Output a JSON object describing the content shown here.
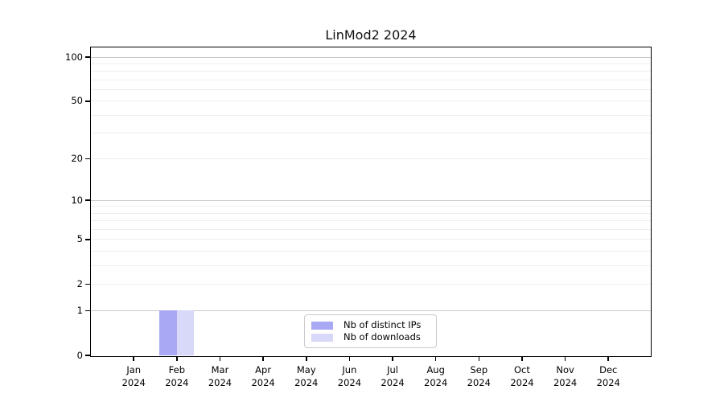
{
  "chart_data": {
    "type": "bar",
    "title": "LinMod2 2024",
    "xlabel": "",
    "ylabel": "",
    "yscale": "log1p",
    "ylim": [
      0,
      116
    ],
    "yticks": [
      0,
      1,
      2,
      5,
      10,
      20,
      50,
      100
    ],
    "gridlines": {
      "major": [
        1,
        10,
        100
      ],
      "minor": [
        2,
        3,
        4,
        5,
        6,
        7,
        8,
        9,
        20,
        30,
        40,
        50,
        60,
        70,
        80,
        90
      ]
    },
    "categories": [
      {
        "label": "Jan",
        "sub": "2024"
      },
      {
        "label": "Feb",
        "sub": "2024"
      },
      {
        "label": "Mar",
        "sub": "2024"
      },
      {
        "label": "Apr",
        "sub": "2024"
      },
      {
        "label": "May",
        "sub": "2024"
      },
      {
        "label": "Jun",
        "sub": "2024"
      },
      {
        "label": "Jul",
        "sub": "2024"
      },
      {
        "label": "Aug",
        "sub": "2024"
      },
      {
        "label": "Sep",
        "sub": "2024"
      },
      {
        "label": "Oct",
        "sub": "2024"
      },
      {
        "label": "Nov",
        "sub": "2024"
      },
      {
        "label": "Dec",
        "sub": "2024"
      }
    ],
    "series": [
      {
        "name": "Nb of distinct IPs",
        "color": "#a8a8f4",
        "values": [
          0,
          1,
          0,
          0,
          0,
          0,
          0,
          0,
          0,
          0,
          0,
          0
        ]
      },
      {
        "name": "Nb of downloads",
        "color": "#d8d8f8",
        "values": [
          0,
          1,
          0,
          0,
          0,
          0,
          0,
          0,
          0,
          0,
          0,
          0
        ]
      }
    ],
    "legend_position": "lower center",
    "grid": true
  },
  "colors": {
    "background": "#ffffff",
    "axis": "#000000",
    "grid_major": "#c9c9c9",
    "grid_minor": "#eeeeee",
    "legend_border": "#cbcbcb",
    "bar_distinct_ips": "#a8a8f4",
    "bar_downloads": "#d8d8f8"
  }
}
